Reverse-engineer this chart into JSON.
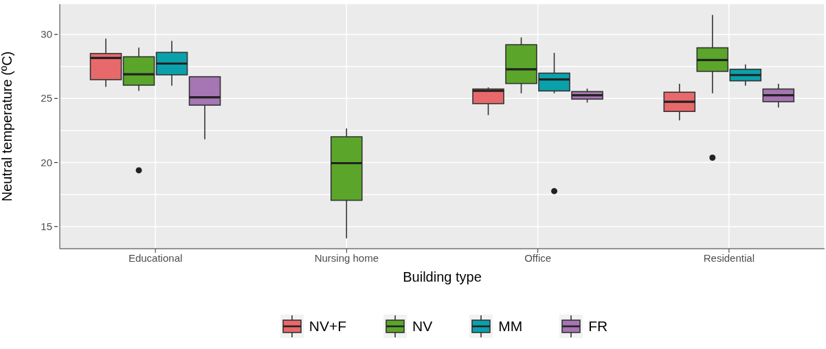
{
  "chart_data": {
    "type": "box",
    "xlabel": "Building type",
    "ylabel": "Neutral temperature (ºC)",
    "categories": [
      "Educational",
      "Nursing home",
      "Office",
      "Residential"
    ],
    "ylim": [
      13.27,
      32.37
    ],
    "yticks": [
      15,
      {
        "value": 17.5,
        "label": null
      },
      20,
      {
        "value": 22.5,
        "label": null
      },
      25,
      {
        "value": 27.5,
        "label": null
      },
      30
    ],
    "grid": true,
    "legend": "bottom",
    "series": [
      {
        "name": "NV+F",
        "color": "#e8696b",
        "boxes": [
          {
            "low": 25.9,
            "q1": 26.47,
            "median": 28.17,
            "q3": 28.51,
            "high": 29.68
          },
          null,
          {
            "low": 23.7,
            "q1": 24.6,
            "median": 25.6,
            "q3": 25.74,
            "high": 25.86
          },
          {
            "low": 23.29,
            "q1": 23.99,
            "median": 24.75,
            "q3": 25.49,
            "high": 26.15
          }
        ]
      },
      {
        "name": "NV",
        "color": "#5ba62a",
        "boxes": [
          {
            "low": 25.59,
            "q1": 26.04,
            "median": 26.89,
            "q3": 28.26,
            "high": 28.97,
            "outliers": [
              19.39
            ]
          },
          {
            "low": 14.08,
            "q1": 17.05,
            "median": 19.95,
            "q3": 22.01,
            "high": 22.66
          },
          {
            "low": 25.41,
            "q1": 26.17,
            "median": 27.28,
            "q3": 29.2,
            "high": 29.77
          },
          {
            "low": 25.41,
            "q1": 27.12,
            "median": 28.0,
            "q3": 28.96,
            "high": 31.53,
            "outliers": [
              20.38
            ]
          }
        ]
      },
      {
        "name": "MM",
        "color": "#0aa1ab",
        "boxes": [
          {
            "low": 26.0,
            "q1": 26.85,
            "median": 27.73,
            "q3": 28.6,
            "high": 29.5
          },
          null,
          {
            "low": 25.41,
            "q1": 25.59,
            "median": 26.49,
            "q3": 26.98,
            "high": 28.56,
            "outliers": [
              17.77
            ]
          },
          {
            "low": 26.0,
            "q1": 26.38,
            "median": 26.83,
            "q3": 27.28,
            "high": 27.66
          }
        ]
      },
      {
        "name": "FR",
        "color": "#a675b3",
        "boxes": [
          {
            "low": 21.82,
            "q1": 24.48,
            "median": 25.09,
            "q3": 26.7,
            "high": 26.73
          },
          null,
          {
            "low": 24.69,
            "q1": 24.95,
            "median": 25.25,
            "q3": 25.54,
            "high": 25.77
          },
          {
            "low": 24.3,
            "q1": 24.75,
            "median": 25.25,
            "q3": 25.74,
            "high": 26.15
          }
        ]
      }
    ]
  }
}
